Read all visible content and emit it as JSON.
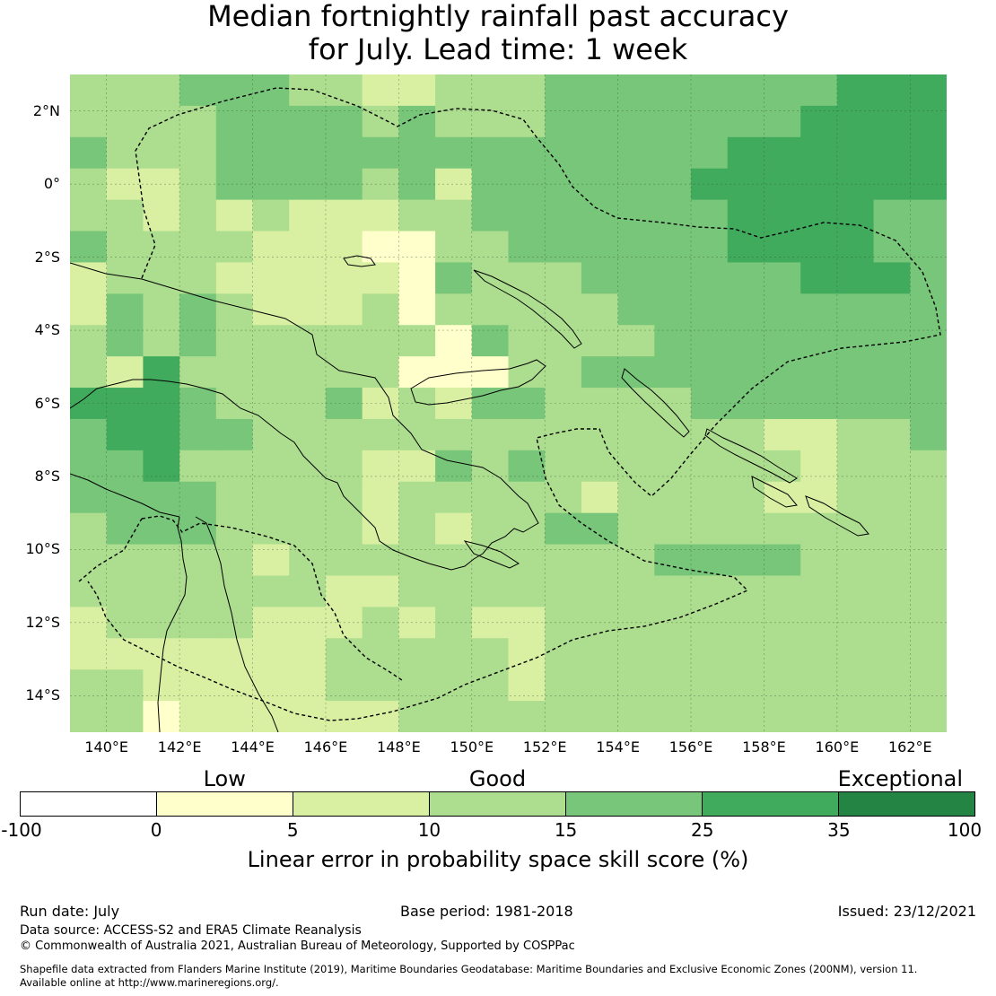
{
  "title_line1": "Median fortnightly rainfall past accuracy",
  "title_line2": "for July. Lead time: 1 week",
  "map": {
    "lon_range": [
      139,
      163
    ],
    "lat_range": [
      -15,
      3
    ],
    "lat_ticks": [
      {
        "value": 2,
        "label": "2°N"
      },
      {
        "value": 0,
        "label": "0°"
      },
      {
        "value": -2,
        "label": "2°S"
      },
      {
        "value": -4,
        "label": "4°S"
      },
      {
        "value": -6,
        "label": "6°S"
      },
      {
        "value": -8,
        "label": "8°S"
      },
      {
        "value": -10,
        "label": "10°S"
      },
      {
        "value": -12,
        "label": "12°S"
      },
      {
        "value": -14,
        "label": "14°S"
      }
    ],
    "lon_ticks": [
      {
        "value": 140,
        "label": "140°E"
      },
      {
        "value": 142,
        "label": "142°E"
      },
      {
        "value": 144,
        "label": "144°E"
      },
      {
        "value": 146,
        "label": "146°E"
      },
      {
        "value": 148,
        "label": "148°E"
      },
      {
        "value": 150,
        "label": "150°E"
      },
      {
        "value": 152,
        "label": "152°E"
      },
      {
        "value": 154,
        "label": "154°E"
      },
      {
        "value": 156,
        "label": "156°E"
      },
      {
        "value": 158,
        "label": "158°E"
      },
      {
        "value": 160,
        "label": "160°E"
      },
      {
        "value": 162,
        "label": "162°E"
      }
    ],
    "skill_field_rows_north_to_south": [
      "333444332233344444444555",
      "333344443433344444445555",
      "433344444444444444555555",
      "322344443424444445555555",
      "332323222334444444555544",
      "433332221133444444555544",
      "233322222143334444445554",
      "243432223133333444444444",
      "343433333314333344444444",
      "325333333111334444444444",
      "555433342324433334444444",
      "455443333333333333322334",
      "445333332243433333332333",
      "444433332333332333322333",
      "344433332323344333333333",
      "333332333333333344443333",
      "333333322333333333333333",
      "233332223232233333333333",
      "222222233333233333333333",
      "332222233333233333333333",
      "331222222333333333333333"
    ],
    "skill_field_legend": {
      "0": "-100 to 0",
      "1": "0 to 5",
      "2": "5 to 10",
      "3": "10 to 15",
      "4": "15 to 25",
      "5": "25 to 35",
      "6": "35 to 100"
    }
  },
  "legend": {
    "categories": [
      {
        "label": "Low",
        "at_value_index": 1.5
      },
      {
        "label": "Good",
        "at_value_index": 3.5
      },
      {
        "label": "Exceptional",
        "at_value_index": 6.45
      }
    ],
    "ticks": [
      "-100",
      "0",
      "5",
      "10",
      "15",
      "25",
      "35",
      "100"
    ],
    "colors": [
      "#ffffff",
      "#ffffcc",
      "#d9f0a3",
      "#addd8e",
      "#78c679",
      "#41ab5d",
      "#238443"
    ],
    "title": "Linear error in probability space skill score (%)"
  },
  "footer": {
    "run_date": "Run date: July",
    "base_period": "Base period: 1981-2018",
    "issued": "Issued: 23/12/2021",
    "data_source": "Data source: ACCESS-S2 and ERA5 Climate Reanalysis",
    "copyright": "© Commonwealth of Australia 2021, Australian Bureau of Meteorology, Supported by COSPPac",
    "shapefile_1": "Shapefile data extracted from Flanders Marine Institute (2019), Maritime Boundaries Geodatabase: Maritime Boundaries and Exclusive Economic Zones (200NM), version 11.",
    "shapefile_2": "Available online at http://www.marineregions.org/."
  }
}
